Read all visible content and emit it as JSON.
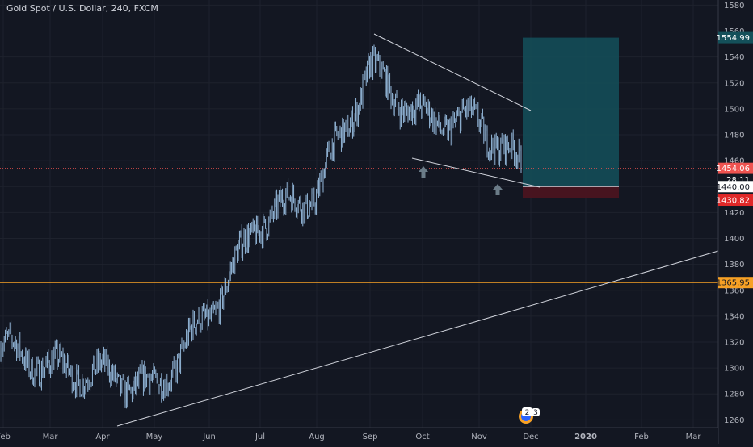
{
  "chart_data": {
    "type": "candlestick",
    "title": "Gold Spot / U.S. Dollar, 240, FXCM",
    "x_tick_labels": [
      "Feb",
      "Mar",
      "Apr",
      "May",
      "Jun",
      "Jul",
      "Aug",
      "Sep",
      "Oct",
      "Nov",
      "Dec",
      "2020",
      "Feb",
      "Mar"
    ],
    "y_ticks": [
      1260,
      1280,
      1300,
      1320,
      1340,
      1360,
      1380,
      1400,
      1420,
      1440,
      1460,
      1480,
      1500,
      1520,
      1540,
      1560,
      1580
    ],
    "ylim": [
      1254,
      1584
    ],
    "price_path_monthly": [
      {
        "month": "Feb",
        "price": 1316
      },
      {
        "month": "Mar",
        "price": 1300
      },
      {
        "month": "Apr",
        "price": 1295
      },
      {
        "month": "May",
        "price": 1283
      },
      {
        "month": "Jun",
        "price": 1342
      },
      {
        "month": "Jul",
        "price": 1415
      },
      {
        "month": "Aug",
        "price": 1436
      },
      {
        "month": "Sep",
        "price": 1530
      },
      {
        "month": "Oct",
        "price": 1492
      },
      {
        "month": "Nov",
        "price": 1490
      },
      {
        "month": "late Nov",
        "price": 1454
      }
    ],
    "price_labels": {
      "target": "1554.99",
      "current": "1454.06",
      "countdown": "28:11",
      "entry": "1440.00",
      "stop": "1430.82",
      "support": "1365.95"
    },
    "levels": {
      "target": 1554.99,
      "current": 1454.06,
      "entry": 1440.0,
      "stop": 1430.82,
      "support": 1365.95
    },
    "colors": {
      "background": "#131722",
      "candle": "#9fc6ea",
      "trendline": "#d1d4dc",
      "support_line": "#f7a125",
      "current_line": "#ef5350",
      "target_zone": "#14505a",
      "stop_zone": "#4a1420",
      "stop_label": "#e02828",
      "current_label": "#ef5350",
      "arrow": "#6b7c88"
    },
    "events_badge": {
      "count_a": "2",
      "count_b": "3"
    }
  }
}
